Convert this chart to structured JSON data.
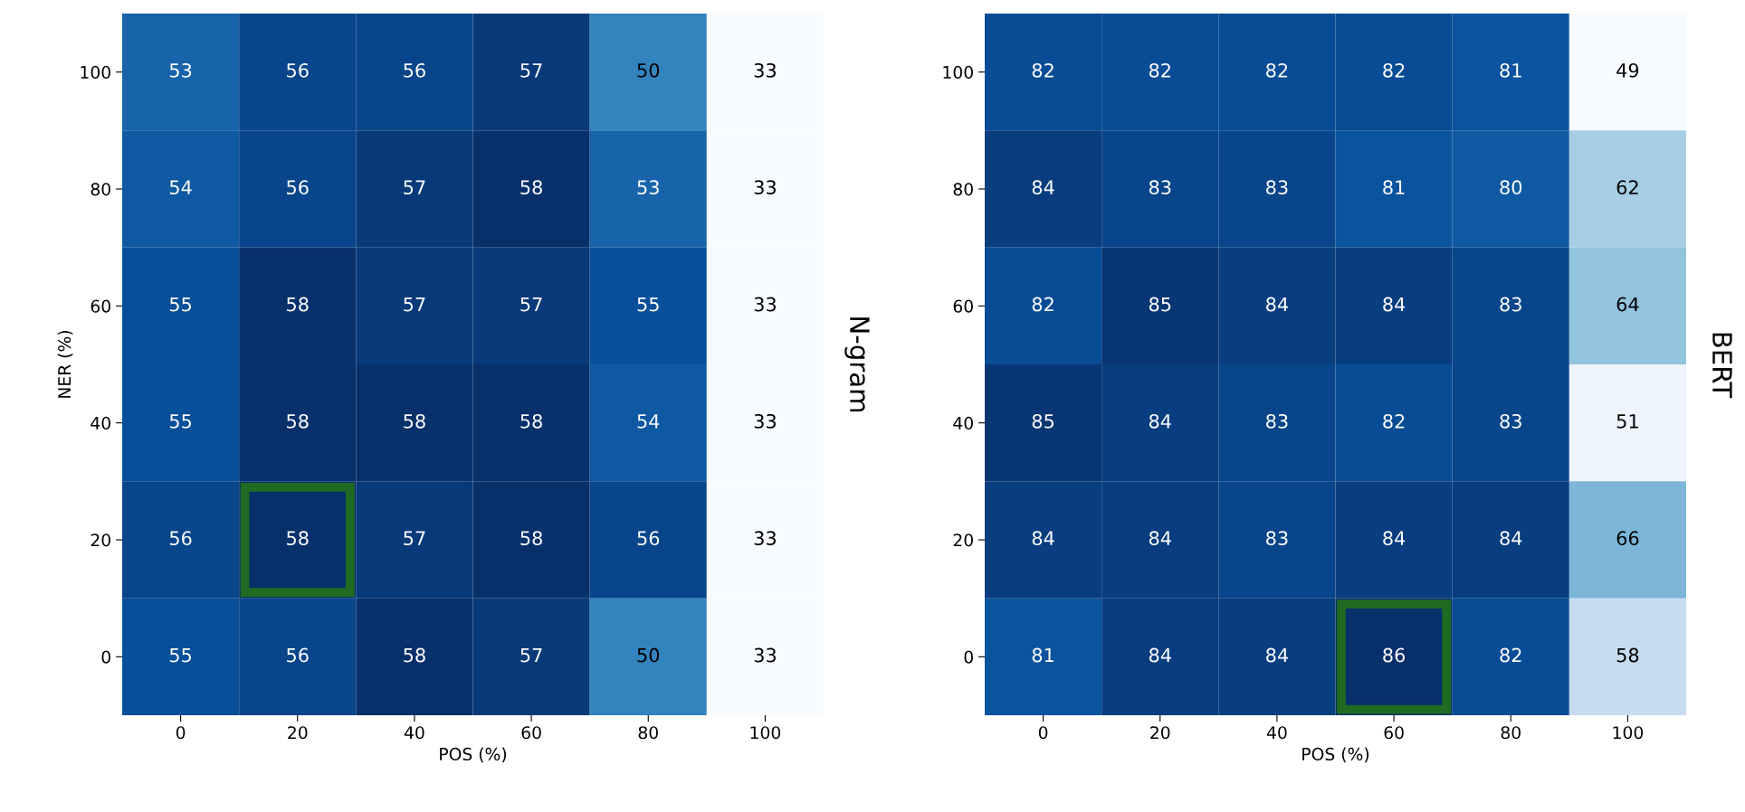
{
  "chart_data": [
    {
      "type": "heatmap",
      "xlabel": "POS (%)",
      "ylabel": "NER (%)",
      "y2label": "N-gram",
      "data_labels": true,
      "categories": [
        "0",
        "20",
        "40",
        "60",
        "80",
        "100"
      ],
      "y_categories": [
        "100",
        "80",
        "60",
        "40",
        "20",
        "0"
      ],
      "cells": [
        [
          53,
          56,
          56,
          57,
          50,
          33
        ],
        [
          54,
          56,
          57,
          58,
          53,
          33
        ],
        [
          55,
          58,
          57,
          57,
          55,
          33
        ],
        [
          55,
          58,
          58,
          58,
          54,
          33
        ],
        [
          56,
          58,
          57,
          58,
          56,
          33
        ],
        [
          55,
          56,
          58,
          57,
          50,
          33
        ]
      ]
    },
    {
      "type": "heatmap",
      "xlabel": "POS (%)",
      "y2label": "BERT",
      "data_labels": true,
      "categories": [
        "0",
        "20",
        "40",
        "60",
        "80",
        "100"
      ],
      "y_categories": [
        "100",
        "80",
        "60",
        "40",
        "20",
        "0"
      ],
      "cells": [
        [
          82,
          82,
          82,
          82,
          81,
          49
        ],
        [
          84,
          83,
          83,
          81,
          80,
          62
        ],
        [
          82,
          85,
          84,
          84,
          83,
          64
        ],
        [
          85,
          84,
          83,
          82,
          83,
          51
        ],
        [
          84,
          84,
          83,
          84,
          84,
          66
        ],
        [
          81,
          84,
          84,
          86,
          82,
          58
        ]
      ]
    }
  ]
}
